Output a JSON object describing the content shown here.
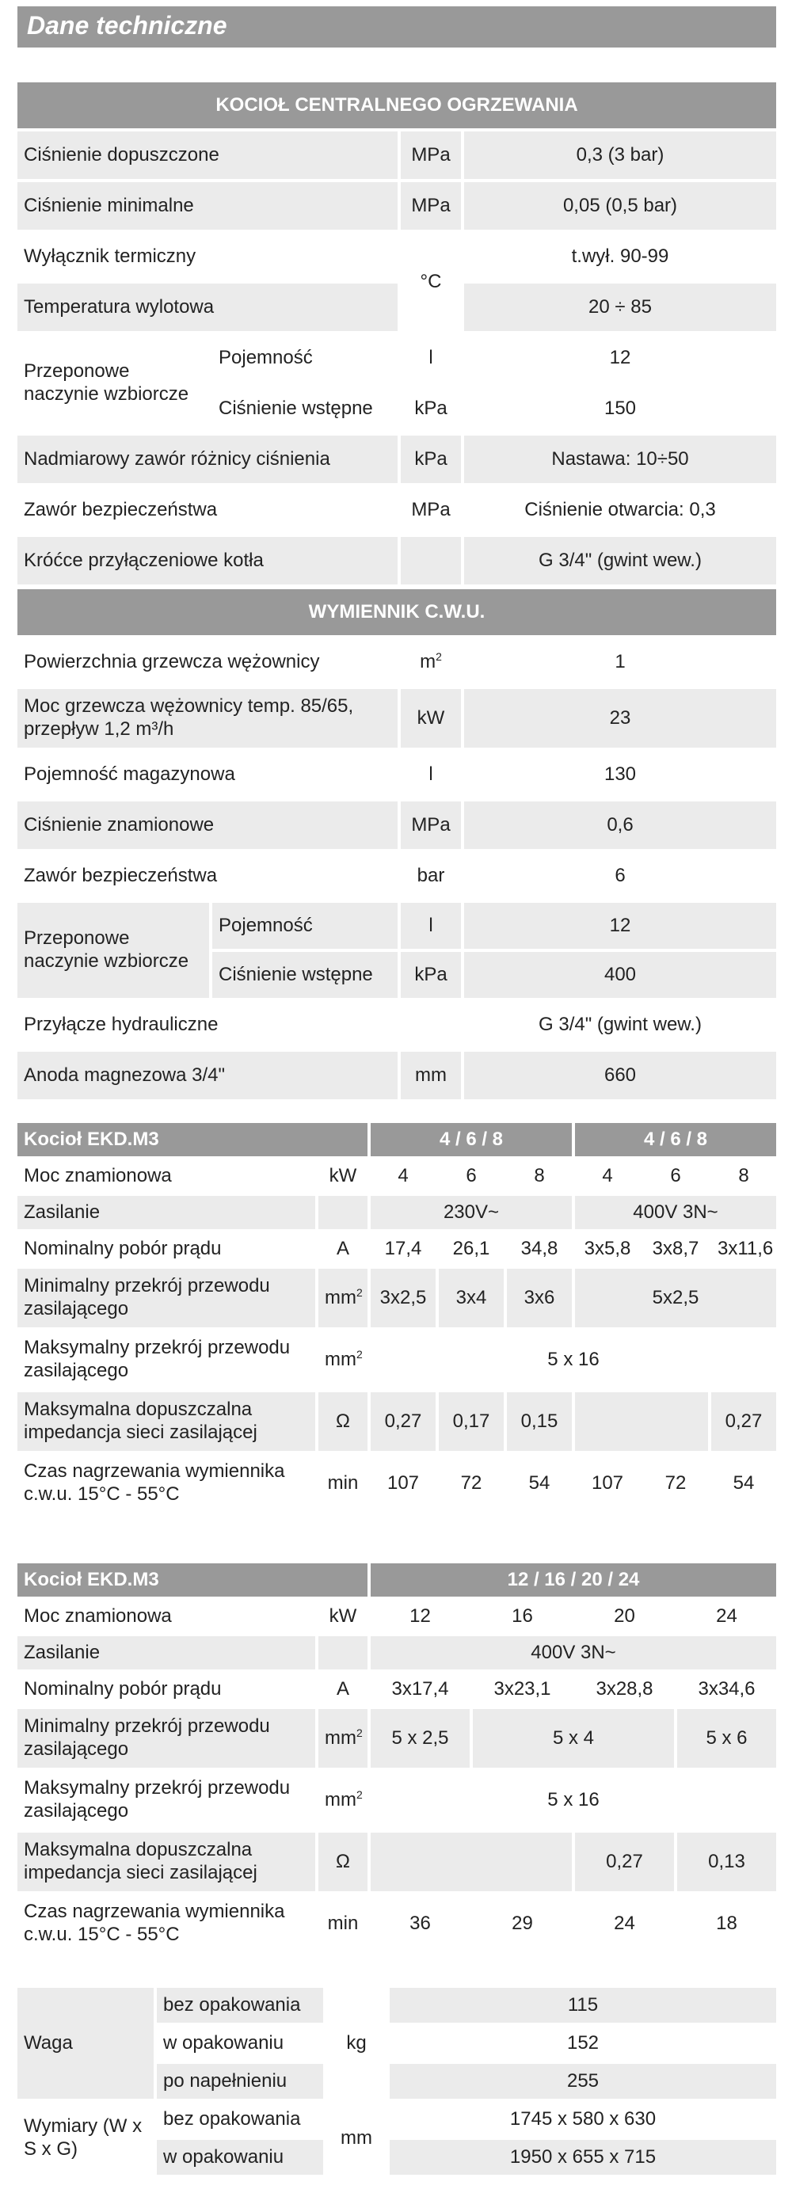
{
  "title": "Dane techniczne",
  "s1": {
    "heading": "KOCIOŁ CENTRALNEGO OGRZEWANIA",
    "rows": [
      {
        "label": "Ciśnienie dopuszczone",
        "unit": "MPa",
        "value": "0,3 (3 bar)"
      },
      {
        "label": "Ciśnienie minimalne",
        "unit": "MPa",
        "value": "0,05 (0,5 bar)"
      },
      {
        "label": "Wyłącznik termiczny",
        "unit": "°C",
        "value": "t.wył. 90-99"
      },
      {
        "label": "Temperatura wylotowa",
        "value": "20 ÷ 85"
      },
      {
        "group": "Przeponowe naczynie wzbiorcze",
        "sub": "Pojemność",
        "unit": "l",
        "value": "12"
      },
      {
        "sub": "Ciśnienie wstępne",
        "unit": "kPa",
        "value": "150"
      },
      {
        "label": "Nadmiarowy zawór różnicy ciśnienia",
        "unit": "kPa",
        "value": "Nastawa: 10÷50"
      },
      {
        "label": "Zawór bezpieczeństwa",
        "unit": "MPa",
        "value": "Ciśnienie otwarcia: 0,3"
      },
      {
        "label": "Króćce przyłączeniowe kotła",
        "unit": "",
        "value": "G 3/4\" (gwint wew.)"
      }
    ]
  },
  "s2": {
    "heading": "WYMIENNIK C.W.U.",
    "rows": [
      {
        "label": "Powierzchnia grzewcza wężownicy",
        "unit": "m",
        "unit_sup": "2",
        "value": "1"
      },
      {
        "label": "Moc grzewcza wężownicy temp. 85/65, przepływ 1,2 m³/h",
        "unit": "kW",
        "value": "23"
      },
      {
        "label": "Pojemność magazynowa",
        "unit": "l",
        "value": "130"
      },
      {
        "label": "Ciśnienie znamionowe",
        "unit": "MPa",
        "value": "0,6"
      },
      {
        "label": "Zawór bezpieczeństwa",
        "unit": "bar",
        "value": "6"
      },
      {
        "group": "Przeponowe naczynie wzbiorcze",
        "sub": "Pojemność",
        "unit": "l",
        "value": "12"
      },
      {
        "sub": "Ciśnienie wstępne",
        "unit": "kPa",
        "value": "400"
      },
      {
        "label": "Przyłącze hydrauliczne",
        "unit": "",
        "value": "G 3/4\" (gwint wew.)"
      },
      {
        "label": "Anoda magnezowa 3/4\"",
        "unit": "mm",
        "value": "660"
      }
    ]
  },
  "s3": {
    "title": "Kocioł EKD.M3",
    "grp1": "4 / 6 / 8",
    "grp2": "4 / 6 / 8",
    "moc": {
      "label": "Moc znamionowa",
      "unit": "kW",
      "vals": [
        "4",
        "6",
        "8",
        "4",
        "6",
        "8"
      ]
    },
    "zas": {
      "label": "Zasilanie",
      "v1": "230V~",
      "v2": "400V 3N~"
    },
    "prad": {
      "label": "Nominalny pobór prądu",
      "unit": "A",
      "vals": [
        "17,4",
        "26,1",
        "34,8",
        "3x5,8",
        "3x8,7",
        "3x11,6"
      ]
    },
    "minp": {
      "label": "Minimalny przekrój przewodu zasilającego",
      "unit": "mm",
      "sup": "2",
      "vals": [
        "3x2,5",
        "3x4",
        "3x6",
        "5x2,5"
      ]
    },
    "maxp": {
      "label": "Maksymalny przekrój przewodu zasilającego",
      "unit": "mm",
      "sup": "2",
      "val": "5 x 16"
    },
    "imp": {
      "label": "Maksymalna dopuszczalna impedancja sieci zasilającej",
      "unit": "Ω",
      "vals": [
        "0,27",
        "0,17",
        "0,15",
        "0,27"
      ]
    },
    "czas": {
      "label": "Czas nagrzewania wymiennika c.w.u. 15°C - 55°C",
      "unit": "min",
      "vals": [
        "107",
        "72",
        "54",
        "107",
        "72",
        "54"
      ]
    }
  },
  "s4": {
    "title": "Kocioł EKD.M3",
    "grp": "12 / 16 / 20 / 24",
    "moc": {
      "label": "Moc znamionowa",
      "unit": "kW",
      "vals": [
        "12",
        "16",
        "20",
        "24"
      ]
    },
    "zas": {
      "label": "Zasilanie",
      "val": "400V 3N~"
    },
    "prad": {
      "label": "Nominalny pobór prądu",
      "unit": "A",
      "vals": [
        "3x17,4",
        "3x23,1",
        "3x28,8",
        "3x34,6"
      ]
    },
    "minp": {
      "label": "Minimalny przekrój przewodu zasilającego",
      "unit": "mm",
      "sup": "2",
      "vals": [
        "5 x 2,5",
        "5 x 4",
        "5 x 6"
      ]
    },
    "maxp": {
      "label": "Maksymalny przekrój przewodu zasilającego",
      "unit": "mm",
      "sup": "2",
      "val": "5 x 16"
    },
    "imp": {
      "label": "Maksymalna dopuszczalna impedancja sieci zasilającej",
      "unit": "Ω",
      "vals": [
        "0,27",
        "0,13"
      ]
    },
    "czas": {
      "label": "Czas nagrzewania wymiennika c.w.u. 15°C - 55°C",
      "unit": "min",
      "vals": [
        "36",
        "29",
        "24",
        "18"
      ]
    }
  },
  "s5": {
    "waga": {
      "label": "Waga",
      "unit": "kg",
      "rows": [
        {
          "sub": "bez opakowania",
          "val": "115"
        },
        {
          "sub": "w opakowaniu",
          "val": "152"
        },
        {
          "sub": "po napełnieniu",
          "val": "255"
        }
      ]
    },
    "wym": {
      "label": "Wymiary (W x S x G)",
      "unit": "mm",
      "rows": [
        {
          "sub": "bez opakowania",
          "val": "1745 x 580 x 630"
        },
        {
          "sub": "w opakowaniu",
          "val": "1950 x 655 x 715"
        }
      ]
    }
  }
}
